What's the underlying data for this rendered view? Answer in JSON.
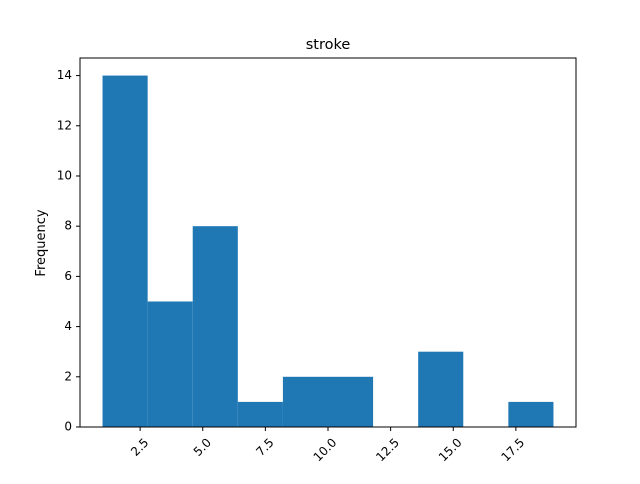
{
  "chart_data": {
    "type": "bar",
    "title": "stroke",
    "xlabel": "",
    "ylabel": "Frequency",
    "bins": [
      [
        1.0,
        2.8
      ],
      [
        2.8,
        4.6
      ],
      [
        4.6,
        6.4
      ],
      [
        6.4,
        8.2
      ],
      [
        8.2,
        10.0
      ],
      [
        10.0,
        11.8
      ],
      [
        11.8,
        13.6
      ],
      [
        13.6,
        15.4
      ],
      [
        15.4,
        17.2
      ],
      [
        17.2,
        19.0
      ]
    ],
    "values": [
      14,
      5,
      8,
      1,
      2,
      2,
      0,
      3,
      0,
      1
    ],
    "xlim": [
      0.1,
      19.9
    ],
    "ylim": [
      0,
      14.7
    ],
    "xticks": [
      2.5,
      5.0,
      7.5,
      10.0,
      12.5,
      15.0,
      17.5
    ],
    "xtick_labels": [
      "2.5",
      "5.0",
      "7.5",
      "10.0",
      "12.5",
      "15.0",
      "17.5"
    ],
    "yticks": [
      0,
      2,
      4,
      6,
      8,
      10,
      12,
      14
    ],
    "ytick_labels": [
      "0",
      "2",
      "4",
      "6",
      "8",
      "10",
      "12",
      "14"
    ],
    "bar_color": "#1f77b4",
    "grid": false,
    "legend": "none"
  }
}
